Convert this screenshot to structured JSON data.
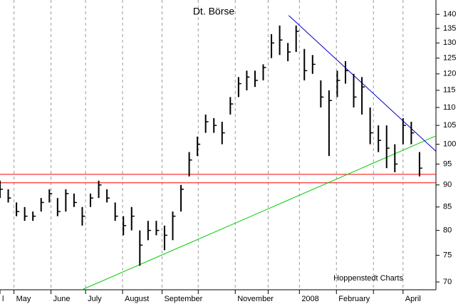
{
  "chart_data": {
    "type": "ohlc",
    "title": "Dt. Börse",
    "annotation": "Hoppenstedt Charts",
    "log_scale": true,
    "grid": true,
    "color": "#000000",
    "high": [
      91,
      89,
      86,
      85,
      84,
      87,
      89,
      87,
      89,
      88,
      85,
      88,
      91,
      89,
      86,
      83,
      85,
      80,
      82,
      82,
      81,
      84,
      90,
      98,
      102,
      108,
      107,
      106,
      113,
      119,
      121,
      121,
      123,
      133,
      136,
      130,
      136,
      128,
      126,
      118,
      115,
      121,
      124,
      120,
      119,
      110,
      105,
      105,
      100,
      107,
      106,
      98
    ],
    "low": [
      87,
      86,
      83,
      82,
      82,
      84,
      86,
      83,
      84,
      85,
      81,
      85,
      87,
      86,
      82,
      79,
      80,
      73,
      78,
      79,
      76,
      78,
      84,
      92,
      97,
      103,
      103,
      100,
      108,
      113,
      115,
      116,
      118,
      125,
      126,
      124,
      127,
      118,
      120,
      110,
      97,
      113,
      117,
      110,
      108,
      100,
      98,
      94,
      93,
      100,
      100,
      92
    ],
    "close": [
      89,
      87,
      84,
      83,
      83,
      86,
      88,
      84,
      88,
      86,
      83,
      87,
      90,
      87,
      83,
      81,
      83,
      77,
      80,
      80,
      79,
      83,
      89,
      96,
      100,
      106,
      105,
      103,
      111,
      117,
      119,
      118,
      122,
      130,
      131,
      127,
      134,
      121,
      123,
      113,
      112,
      118,
      121,
      113,
      116,
      103,
      101,
      99,
      95,
      105,
      103,
      94
    ],
    "xlim": [
      0,
      53
    ],
    "xticks": [
      {
        "value": 0,
        "label": "l"
      },
      {
        "value": 1.7,
        "label": "May"
      },
      {
        "value": 6.2,
        "label": "June"
      },
      {
        "value": 10.4,
        "label": "July"
      },
      {
        "value": 14.9,
        "label": "August"
      },
      {
        "value": 19.7,
        "label": "September"
      },
      {
        "value": 24.1,
        "label": null
      },
      {
        "value": 28.6,
        "label": "November"
      },
      {
        "value": 32.6,
        "label": null
      },
      {
        "value": 36.4,
        "label": "2008"
      },
      {
        "value": 40.9,
        "label": "February"
      },
      {
        "value": 45.4,
        "label": null
      },
      {
        "value": 49.0,
        "label": "April"
      }
    ],
    "ylim": [
      68.6,
      145.3
    ],
    "yticks": [
      70,
      75,
      80,
      85,
      90,
      95,
      100,
      105,
      110,
      115,
      120,
      125,
      130,
      135,
      140
    ],
    "lines": [
      {
        "color": "#ff0000",
        "x": [
          0,
          53
        ],
        "values": [
          92.5,
          92.5
        ]
      },
      {
        "color": "#ff0000",
        "x": [
          0,
          53
        ],
        "values": [
          90.5,
          90.5
        ]
      },
      {
        "color": "#00cc00",
        "x": [
          9.96,
          53
        ],
        "values": [
          68.6,
          102.2
        ]
      },
      {
        "color": "#0000cc",
        "x": [
          35.1,
          53
        ],
        "values": [
          139.6,
          98.2
        ]
      }
    ]
  }
}
